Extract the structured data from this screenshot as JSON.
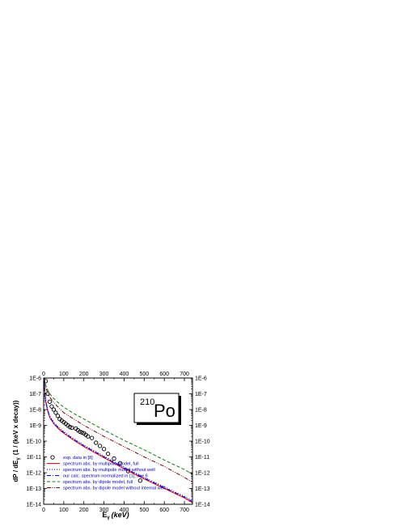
{
  "chart_data": {
    "type": "line",
    "xlabel": "E",
    "xlabel_sub": "γ",
    "xlabel_unit": "(keV)",
    "ylabel": "dP / dE",
    "ylabel_sub": "γ",
    "ylabel_unit": "(1 / (keV x decay))",
    "xlim": [
      0,
      740
    ],
    "ylim_log10": [
      -14,
      -6
    ],
    "log_y": true,
    "x_ticks": [
      "0",
      "100",
      "200",
      "300",
      "400",
      "500",
      "600",
      "700"
    ],
    "y_ticks": [
      "1E-6",
      "1E-7",
      "1E-8",
      "1E-9",
      "1E-10",
      "1E-11",
      "1E-12",
      "1E-13",
      "1E-14"
    ],
    "annotation": {
      "mass_number": "210",
      "element": "Po"
    },
    "legend_position": "bottom-left",
    "series": [
      {
        "name": "exp. data in [8]",
        "style": "markers",
        "marker": "circle",
        "color": "#000000",
        "x": [
          10,
          20,
          30,
          40,
          50,
          60,
          70,
          80,
          90,
          100,
          110,
          120,
          130,
          140,
          160,
          170,
          180,
          190,
          200,
          210,
          220,
          240,
          260,
          280,
          300,
          320,
          350,
          380,
          420,
          480
        ],
        "y": [
          -6.2,
          -7.0,
          -7.5,
          -7.8,
          -8.0,
          -8.2,
          -8.4,
          -8.6,
          -8.7,
          -8.8,
          -8.9,
          -9.0,
          -9.1,
          -9.15,
          -9.2,
          -9.3,
          -9.4,
          -9.45,
          -9.5,
          -9.6,
          -9.7,
          -9.8,
          -10.1,
          -10.3,
          -10.5,
          -10.8,
          -11.1,
          -11.4,
          -11.9,
          -12.5
        ]
      },
      {
        "name": "spectrum abs. by multipole model, full",
        "style": "solid",
        "color": "#ff0000",
        "x": [
          2,
          5,
          10,
          20,
          30,
          50,
          80,
          100,
          150,
          200,
          300,
          400,
          500,
          600,
          700,
          740
        ],
        "y": [
          -6.1,
          -6.8,
          -7.5,
          -8.1,
          -8.5,
          -8.9,
          -9.3,
          -9.5,
          -9.95,
          -10.35,
          -11.05,
          -11.75,
          -12.4,
          -13.0,
          -13.6,
          -13.9
        ]
      },
      {
        "name": "spectrum abs. by multipole model without well",
        "style": "dot",
        "color": "#0000ff",
        "x": [
          2,
          5,
          10,
          20,
          30,
          50,
          80,
          100,
          150,
          200,
          300,
          400,
          500,
          600,
          700,
          740
        ],
        "y": [
          -6.0,
          -6.7,
          -7.4,
          -8.0,
          -8.4,
          -8.8,
          -9.2,
          -9.4,
          -9.85,
          -10.25,
          -10.95,
          -11.65,
          -12.3,
          -12.9,
          -13.5,
          -13.8
        ]
      },
      {
        "name": "our calc. spectrum normalized in [1], line 6",
        "style": "dashdot",
        "color": "#0000ff",
        "x": [
          2,
          5,
          10,
          20,
          30,
          50,
          80,
          100,
          150,
          200,
          300,
          400,
          500,
          600,
          700,
          740
        ],
        "y": [
          -6.05,
          -6.75,
          -7.45,
          -8.05,
          -8.45,
          -8.85,
          -9.25,
          -9.45,
          -9.9,
          -10.3,
          -11.0,
          -11.7,
          -12.35,
          -12.95,
          -13.55,
          -13.85
        ]
      },
      {
        "name": "spectrum abs. by dipole model, full",
        "style": "dash",
        "color": "#008000",
        "x": [
          2,
          5,
          10,
          20,
          30,
          50,
          80,
          100,
          150,
          200,
          300,
          400,
          500,
          600,
          700,
          740
        ],
        "y": [
          -6.05,
          -6.2,
          -6.45,
          -6.75,
          -7.0,
          -7.3,
          -7.65,
          -7.85,
          -8.25,
          -8.6,
          -9.3,
          -9.95,
          -10.55,
          -11.2,
          -11.8,
          -12.1
        ]
      },
      {
        "name": "spectrum abs. by dipole model without internal well",
        "style": "dashdotdot",
        "color": "#800000",
        "x": [
          2,
          5,
          10,
          20,
          30,
          50,
          80,
          100,
          150,
          200,
          300,
          400,
          500,
          600,
          700,
          740
        ],
        "y": [
          -6.1,
          -6.3,
          -6.6,
          -6.95,
          -7.2,
          -7.55,
          -7.95,
          -8.2,
          -8.6,
          -9.0,
          -9.7,
          -10.35,
          -11.0,
          -11.6,
          -12.3,
          -12.6
        ]
      }
    ]
  }
}
